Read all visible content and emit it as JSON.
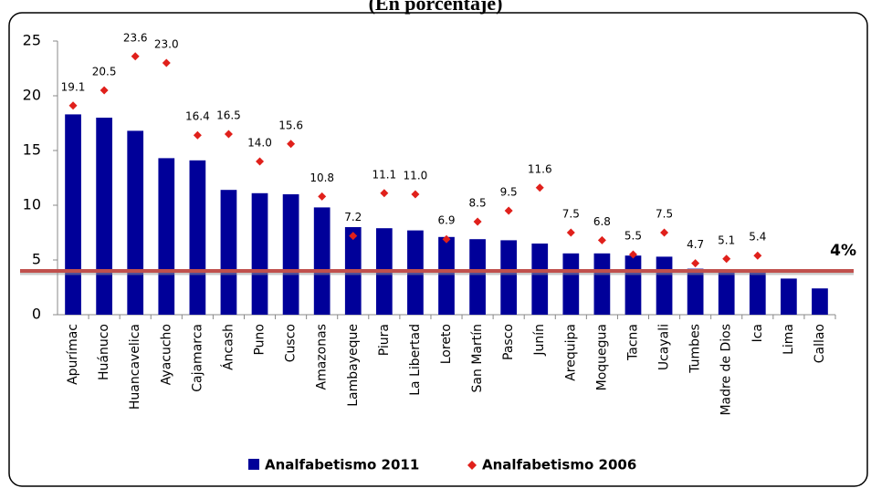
{
  "chart_data": {
    "type": "bar",
    "title": "(En porcentaje)",
    "categories": [
      "Apurímac",
      "Huánuco",
      "Huancavelica",
      "Ayacucho",
      "Cajamarca",
      "Áncash",
      "Puno",
      "Cusco",
      "Amazonas",
      "Lambayeque",
      "Piura",
      "La Libertad",
      "Loreto",
      "San Martín",
      "Pasco",
      "Junín",
      "Arequipa",
      "Moquegua",
      "Tacna",
      "Ucayali",
      "Tumbes",
      "Madre de Dios",
      "Ica",
      "Lima",
      "Callao"
    ],
    "series": [
      {
        "name": "Analfabetismo 2011",
        "color": "#000099",
        "values": [
          18.3,
          18.0,
          16.8,
          14.3,
          14.1,
          11.4,
          11.1,
          11.0,
          9.8,
          8.0,
          7.9,
          7.7,
          7.1,
          6.9,
          6.8,
          6.5,
          5.6,
          5.6,
          5.4,
          5.3,
          4.2,
          4.1,
          4.0,
          3.3,
          2.4
        ]
      },
      {
        "name": "Analfabetismo 2006",
        "color": "#e0201b",
        "values": [
          19.1,
          20.5,
          23.6,
          23.0,
          16.4,
          16.5,
          14.0,
          15.6,
          10.8,
          7.2,
          11.1,
          11.0,
          6.9,
          8.5,
          9.5,
          11.6,
          7.5,
          6.8,
          5.5,
          7.5,
          4.7,
          5.1,
          5.4,
          null,
          null
        ],
        "value_labels": [
          "19.1",
          "20.5",
          "23.6",
          "23.0",
          "16.4",
          "16.5",
          "14.0",
          "15.6",
          "10.8",
          "7.2",
          "11.1",
          "11.0",
          "6.9",
          "8.5",
          "9.5",
          "11.6",
          "7.5",
          "6.8",
          "5.5",
          "7.5",
          "4.7",
          "5.1",
          "5.4",
          null,
          null
        ]
      }
    ],
    "ylim": [
      0,
      25
    ],
    "yticks": [
      0,
      5,
      10,
      15,
      20,
      25
    ],
    "reference_line": {
      "value": 4,
      "label": "4%",
      "color": "#c0504d"
    },
    "legend": "bottom"
  }
}
